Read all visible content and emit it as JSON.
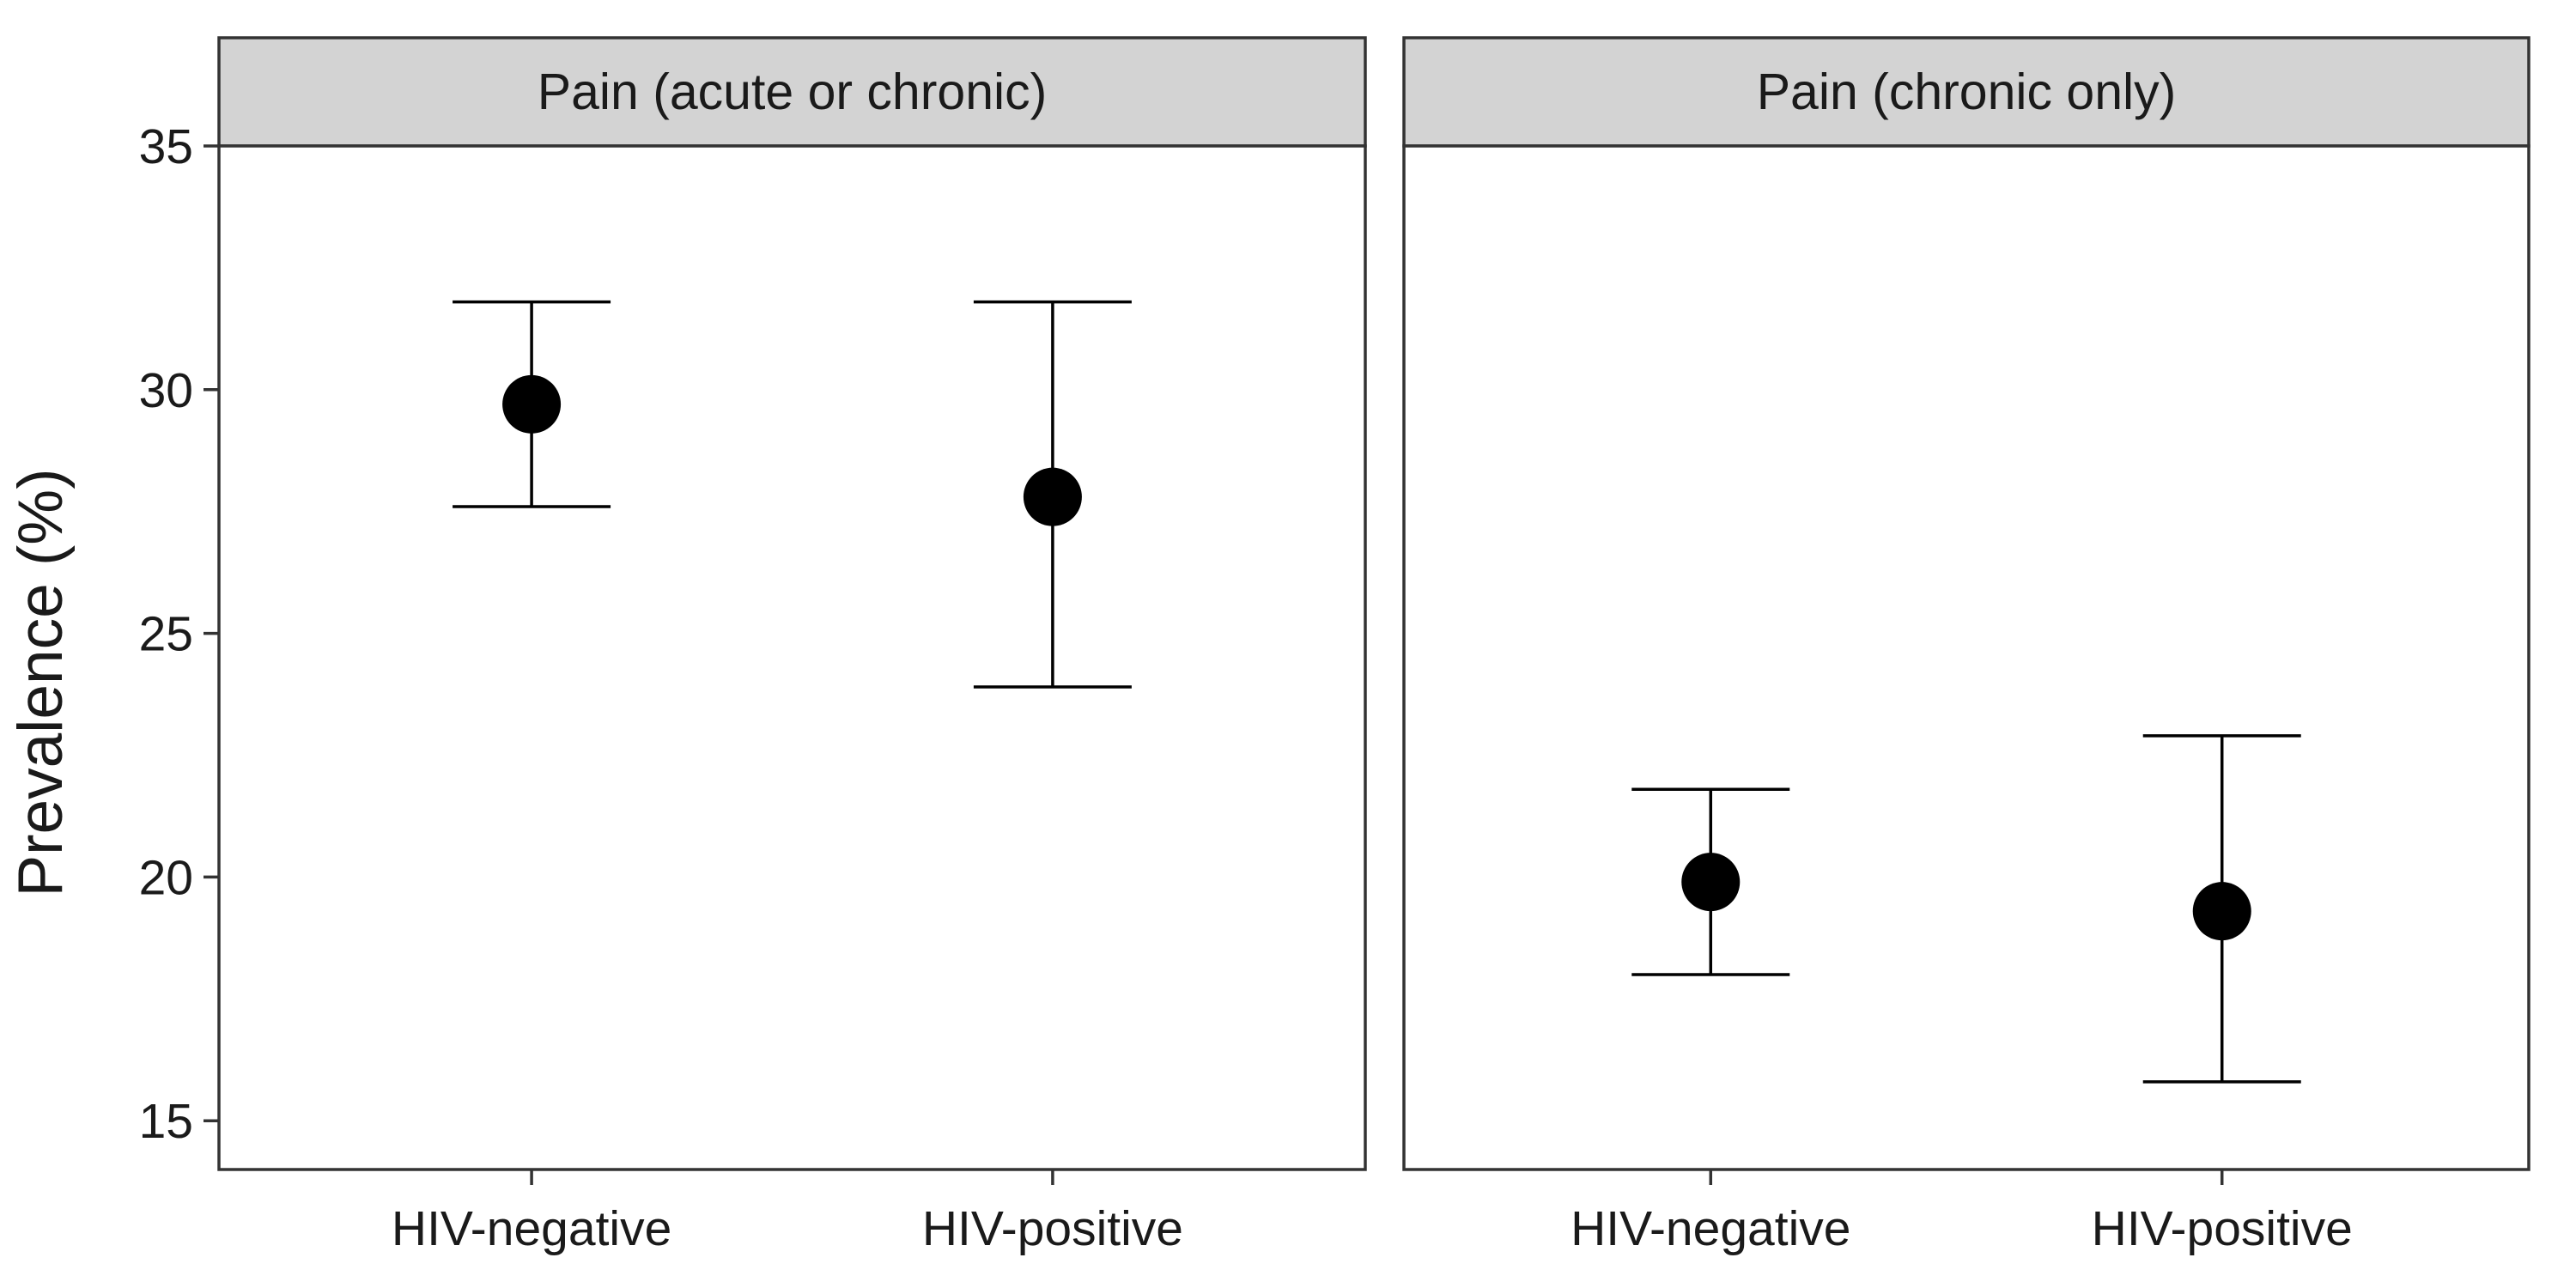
{
  "chart_data": {
    "type": "scatter",
    "subtype": "point-with-errorbars, faceted",
    "ylabel": "Prevalence (%)",
    "xlabel": "",
    "ylim": [
      14.0,
      35.0
    ],
    "yticks": [
      15,
      20,
      25,
      30,
      35
    ],
    "categories": [
      "HIV-negative",
      "HIV-positive"
    ],
    "grid": false,
    "legend": "none",
    "colors": {
      "point": "#000000",
      "panel_border": "#333333",
      "strip_fill": "#d3d3d3",
      "background": "#ffffff"
    },
    "facets": [
      {
        "title": "Pain (acute or chronic)",
        "points": [
          {
            "category": "HIV-negative",
            "estimate": 29.7,
            "lower": 27.6,
            "upper": 31.8
          },
          {
            "category": "HIV-positive",
            "estimate": 27.8,
            "lower": 23.9,
            "upper": 31.8
          }
        ]
      },
      {
        "title": "Pain (chronic only)",
        "points": [
          {
            "category": "HIV-negative",
            "estimate": 19.9,
            "lower": 18.0,
            "upper": 21.8
          },
          {
            "category": "HIV-positive",
            "estimate": 19.3,
            "lower": 15.8,
            "upper": 22.9
          }
        ]
      }
    ]
  }
}
